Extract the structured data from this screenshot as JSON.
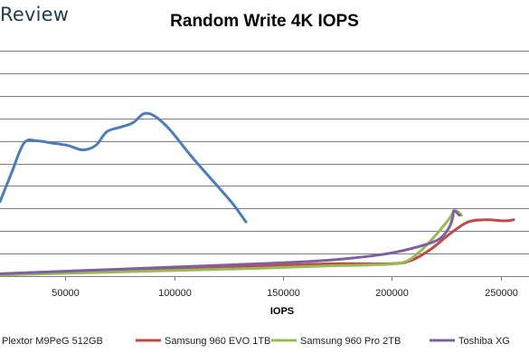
{
  "logo_text": "Review",
  "chart_data": {
    "type": "line",
    "title": "Random Write 4K IOPS",
    "xlabel": "IOPS",
    "ylabel": "",
    "x_ticks": [
      50000,
      100000,
      150000,
      200000,
      250000
    ],
    "x_tick_labels": [
      "50000",
      "100000",
      "150000",
      "200000",
      "250000"
    ],
    "xlim": [
      20000,
      263000
    ],
    "ylim": [
      0,
      10
    ],
    "y_gridlines": [
      1,
      2,
      3,
      4,
      5,
      6,
      7,
      8,
      9,
      10
    ],
    "grid": true,
    "legend_position": "bottom",
    "series": [
      {
        "name": "Plextor M9PeG 512GB",
        "color": "#4a7ebb",
        "points": [
          [
            20000,
            3.3
          ],
          [
            25000,
            4.5
          ],
          [
            31000,
            5.9
          ],
          [
            37000,
            6.0
          ],
          [
            44000,
            5.9
          ],
          [
            51000,
            5.8
          ],
          [
            58000,
            5.6
          ],
          [
            64000,
            5.8
          ],
          [
            69000,
            6.4
          ],
          [
            75000,
            6.6
          ],
          [
            81000,
            6.8
          ],
          [
            86000,
            7.2
          ],
          [
            91000,
            7.1
          ],
          [
            98000,
            6.5
          ],
          [
            108000,
            5.3
          ],
          [
            118000,
            4.2
          ],
          [
            127000,
            3.2
          ],
          [
            133000,
            2.4
          ]
        ]
      },
      {
        "name": "Samsung 960 EVO 1TB",
        "color": "#be4b48",
        "points": [
          [
            20000,
            0.1
          ],
          [
            60000,
            0.25
          ],
          [
            100000,
            0.35
          ],
          [
            140000,
            0.45
          ],
          [
            175000,
            0.55
          ],
          [
            200000,
            0.55
          ],
          [
            209000,
            0.7
          ],
          [
            218000,
            1.2
          ],
          [
            227000,
            1.9
          ],
          [
            235000,
            2.4
          ],
          [
            243000,
            2.5
          ],
          [
            252000,
            2.45
          ],
          [
            256000,
            2.5
          ]
        ]
      },
      {
        "name": "Samsung 960 Pro 2TB",
        "color": "#98b954",
        "points": [
          [
            20000,
            0.05
          ],
          [
            60000,
            0.15
          ],
          [
            100000,
            0.25
          ],
          [
            140000,
            0.35
          ],
          [
            170000,
            0.45
          ],
          [
            190000,
            0.5
          ],
          [
            205000,
            0.6
          ],
          [
            213000,
            1.1
          ],
          [
            220000,
            1.8
          ],
          [
            226000,
            2.5
          ],
          [
            229000,
            2.9
          ],
          [
            232000,
            2.7
          ]
        ]
      },
      {
        "name": "Toshiba XG",
        "color": "#7d60a0",
        "points": [
          [
            20000,
            0.1
          ],
          [
            60000,
            0.25
          ],
          [
            100000,
            0.4
          ],
          [
            140000,
            0.55
          ],
          [
            170000,
            0.7
          ],
          [
            195000,
            0.95
          ],
          [
            210000,
            1.25
          ],
          [
            221000,
            1.6
          ],
          [
            226000,
            2.1
          ],
          [
            228000,
            2.6
          ],
          [
            228500,
            2.9
          ],
          [
            231000,
            2.7
          ]
        ]
      }
    ]
  }
}
